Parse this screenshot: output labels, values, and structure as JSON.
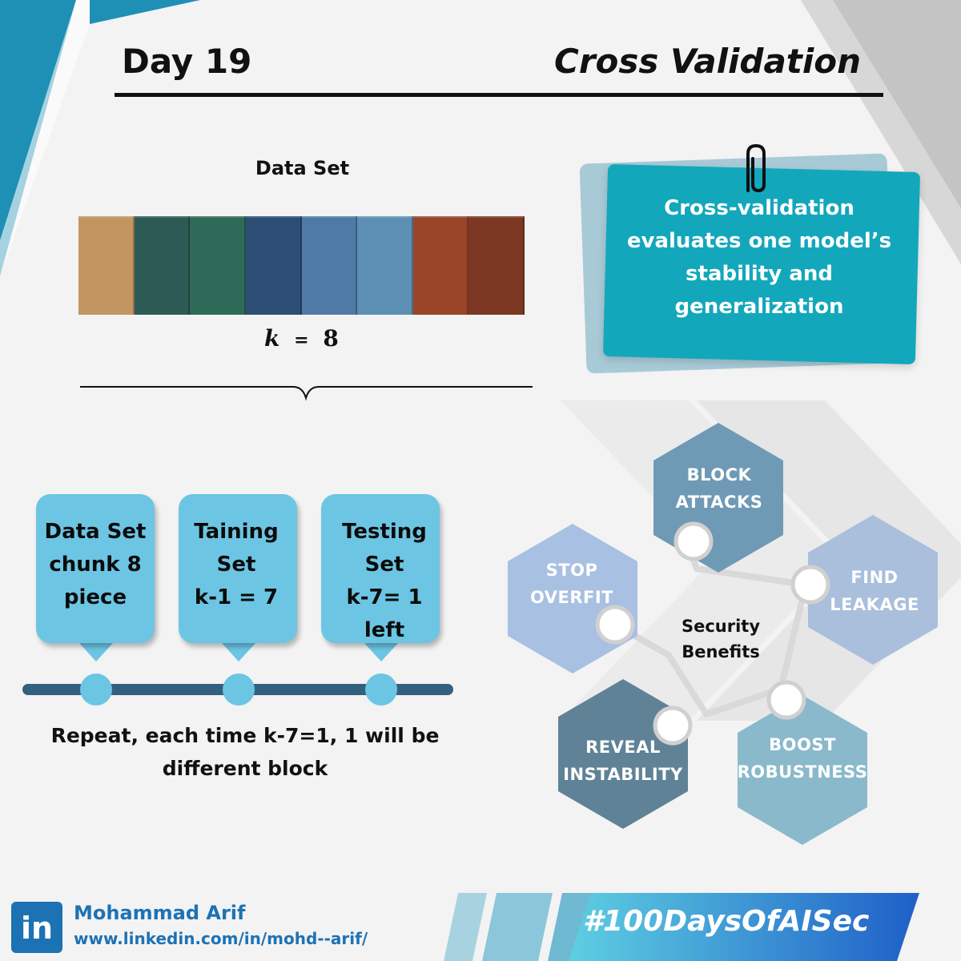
{
  "header": {
    "day": "Day 19",
    "topic": "Cross Validation"
  },
  "dataset": {
    "label": "Data Set",
    "blocks": [
      "#c29561",
      "#2e5a55",
      "#2f6a58",
      "#2c4d74",
      "#4f7aa8",
      "#5d8fb4",
      "#9a4528",
      "#7c3822"
    ],
    "k_symbol": "k",
    "k_equals": "=",
    "k_value": "8"
  },
  "card": {
    "text_lines": [
      "Cross-validation",
      "evaluates one model’s",
      "stability and",
      "generalization"
    ]
  },
  "callouts": [
    {
      "lines": [
        "Data Set",
        "chunk 8",
        "piece"
      ]
    },
    {
      "lines": [
        "Taining",
        "Set",
        "k-1 = 7"
      ]
    },
    {
      "lines": [
        "Testing",
        "Set",
        "k-7= 1",
        "left"
      ]
    }
  ],
  "repeat_text": [
    "Repeat, each time k-7=1, 1 will be",
    "different block"
  ],
  "security": {
    "center": [
      "Security",
      "Benefits"
    ],
    "hexagons": [
      {
        "lines": [
          "BLOCK",
          "ATTACKS"
        ],
        "color": "#6f9ab6"
      },
      {
        "lines": [
          "FIND",
          "LEAKAGE"
        ],
        "color": "#a9bfdc"
      },
      {
        "lines": [
          "BOOST",
          "ROBUSTNESS"
        ],
        "color": "#8ab9cb"
      },
      {
        "lines": [
          "REVEAL",
          "INSTABILITY"
        ],
        "color": "#5f8296"
      },
      {
        "lines": [
          "STOP",
          "OVERFIT"
        ],
        "color": "#a8c0e2"
      }
    ]
  },
  "footer": {
    "linkedin_icon": "in",
    "name": "Mohammad Arif",
    "url": "www.linkedin.com/in/mohd--arif/",
    "hashtag": "#100DaysOfAISec"
  }
}
